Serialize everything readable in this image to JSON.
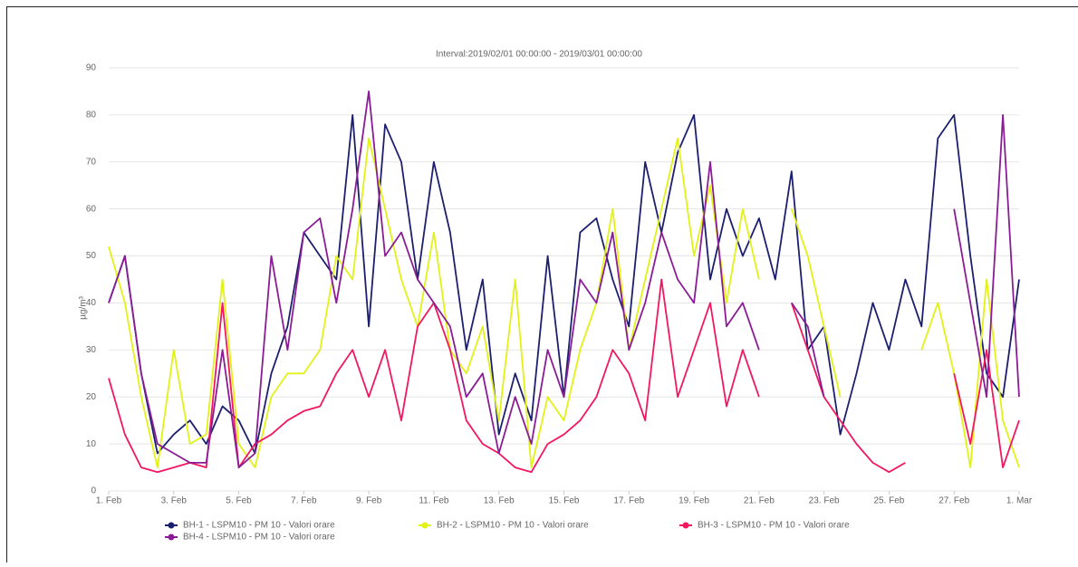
{
  "chart_data": {
    "type": "line",
    "title": "Interval:2019/02/01 00:00:00 - 2019/03/01 00:00:00",
    "y_label": "µg/m³",
    "x": [
      "2019-02-01T00:00",
      "2019-02-01T12:00",
      "2019-02-02T00:00",
      "2019-02-02T12:00",
      "2019-02-03T00:00",
      "2019-02-03T12:00",
      "2019-02-04T00:00",
      "2019-02-04T12:00",
      "2019-02-05T00:00",
      "2019-02-05T12:00",
      "2019-02-06T00:00",
      "2019-02-06T12:00",
      "2019-02-07T00:00",
      "2019-02-07T12:00",
      "2019-02-08T00:00",
      "2019-02-08T12:00",
      "2019-02-09T00:00",
      "2019-02-09T12:00",
      "2019-02-10T00:00",
      "2019-02-10T12:00",
      "2019-02-11T00:00",
      "2019-02-11T12:00",
      "2019-02-12T00:00",
      "2019-02-12T12:00",
      "2019-02-13T00:00",
      "2019-02-13T12:00",
      "2019-02-14T00:00",
      "2019-02-14T12:00",
      "2019-02-15T00:00",
      "2019-02-15T12:00",
      "2019-02-16T00:00",
      "2019-02-16T12:00",
      "2019-02-17T00:00",
      "2019-02-17T12:00",
      "2019-02-18T00:00",
      "2019-02-18T12:00",
      "2019-02-19T00:00",
      "2019-02-19T12:00",
      "2019-02-20T00:00",
      "2019-02-20T12:00",
      "2019-02-21T00:00",
      "2019-02-21T12:00",
      "2019-02-22T00:00",
      "2019-02-22T12:00",
      "2019-02-23T00:00",
      "2019-02-23T12:00",
      "2019-02-24T00:00",
      "2019-02-24T12:00",
      "2019-02-25T00:00",
      "2019-02-25T12:00",
      "2019-02-26T00:00",
      "2019-02-26T12:00",
      "2019-02-27T00:00",
      "2019-02-27T12:00",
      "2019-02-28T00:00",
      "2019-02-28T12:00",
      "2019-03-01T00:00"
    ],
    "xlim": [
      "2019-02-01T00:00",
      "2019-03-01T00:00"
    ],
    "xticks": [
      {
        "value": "2019-02-01T00:00",
        "label": "1. Feb"
      },
      {
        "value": "2019-02-03T00:00",
        "label": "3. Feb"
      },
      {
        "value": "2019-02-05T00:00",
        "label": "5. Feb"
      },
      {
        "value": "2019-02-07T00:00",
        "label": "7. Feb"
      },
      {
        "value": "2019-02-09T00:00",
        "label": "9. Feb"
      },
      {
        "value": "2019-02-11T00:00",
        "label": "11. Feb"
      },
      {
        "value": "2019-02-13T00:00",
        "label": "13. Feb"
      },
      {
        "value": "2019-02-15T00:00",
        "label": "15. Feb"
      },
      {
        "value": "2019-02-17T00:00",
        "label": "17. Feb"
      },
      {
        "value": "2019-02-19T00:00",
        "label": "19. Feb"
      },
      {
        "value": "2019-02-21T00:00",
        "label": "21. Feb"
      },
      {
        "value": "2019-02-23T00:00",
        "label": "23. Feb"
      },
      {
        "value": "2019-02-25T00:00",
        "label": "25. Feb"
      },
      {
        "value": "2019-02-27T00:00",
        "label": "27. Feb"
      },
      {
        "value": "2019-03-01T00:00",
        "label": "1. Mar"
      }
    ],
    "ylim": [
      0,
      90
    ],
    "yticks": [
      0,
      10,
      20,
      30,
      40,
      50,
      60,
      70,
      80,
      90
    ],
    "grid": true,
    "series": [
      {
        "name": "BH-1 - LSPM10 - PM 10 - Valori orare",
        "color": "#1c1f6e",
        "values": [
          40,
          50,
          25,
          8,
          12,
          15,
          10,
          18,
          15,
          8,
          25,
          35,
          55,
          50,
          45,
          80,
          35,
          78,
          70,
          45,
          70,
          55,
          30,
          45,
          12,
          25,
          15,
          50,
          20,
          55,
          58,
          45,
          35,
          70,
          55,
          72,
          80,
          45,
          60,
          50,
          58,
          45,
          68,
          30,
          35,
          12,
          25,
          40,
          30,
          45,
          35,
          75,
          80,
          50,
          25,
          20,
          45
        ]
      },
      {
        "name": "BH-2 - LSPM10 - PM 10 - Valori orare",
        "color": "#e2f215",
        "values": [
          52,
          40,
          20,
          5,
          30,
          10,
          12,
          45,
          10,
          5,
          20,
          25,
          25,
          30,
          50,
          45,
          75,
          60,
          45,
          35,
          55,
          30,
          25,
          35,
          15,
          45,
          5,
          20,
          15,
          30,
          40,
          60,
          30,
          45,
          60,
          75,
          50,
          65,
          40,
          60,
          45,
          null,
          60,
          50,
          35,
          20,
          null,
          null,
          null,
          null,
          30,
          40,
          25,
          5,
          45,
          15,
          5
        ]
      },
      {
        "name": "BH-3 - LSPM10 - PM 10 - Valori orare",
        "color": "#f2175f",
        "values": [
          24,
          12,
          5,
          4,
          5,
          6,
          5,
          40,
          5,
          10,
          12,
          15,
          17,
          18,
          25,
          30,
          20,
          30,
          15,
          35,
          40,
          30,
          15,
          10,
          8,
          5,
          4,
          10,
          12,
          15,
          20,
          30,
          25,
          15,
          45,
          20,
          30,
          40,
          18,
          30,
          20,
          null,
          40,
          30,
          20,
          15,
          10,
          6,
          4,
          6,
          null,
          null,
          25,
          10,
          30,
          5,
          15
        ]
      },
      {
        "name": "BH-4 - LSPM10 - PM 10 - Valori orare",
        "color": "#8a1c96",
        "values": [
          40,
          50,
          25,
          10,
          8,
          6,
          6,
          30,
          5,
          8,
          50,
          30,
          55,
          58,
          40,
          60,
          85,
          50,
          55,
          45,
          40,
          35,
          20,
          25,
          8,
          20,
          10,
          30,
          20,
          45,
          40,
          55,
          30,
          40,
          55,
          45,
          40,
          70,
          35,
          40,
          30,
          null,
          40,
          35,
          20,
          null,
          null,
          null,
          null,
          null,
          null,
          null,
          60,
          40,
          20,
          80,
          20
        ]
      }
    ]
  }
}
